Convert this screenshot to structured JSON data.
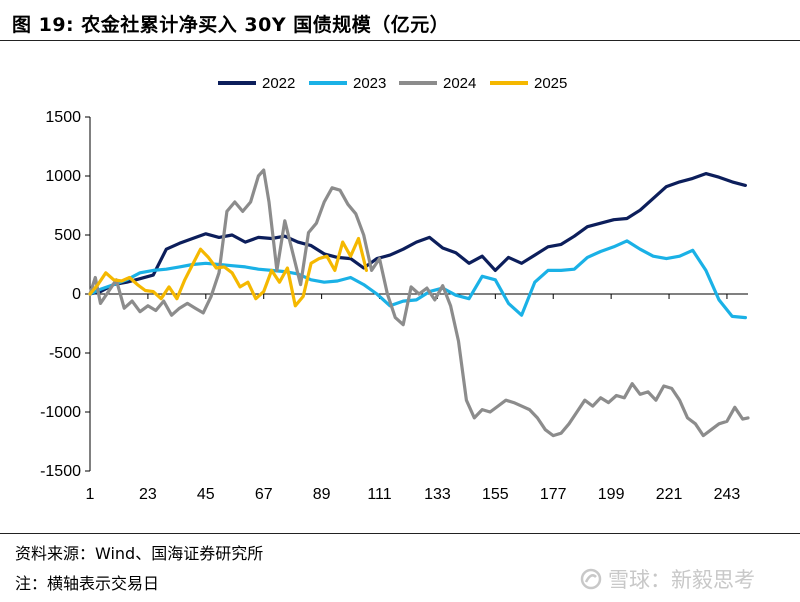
{
  "figure": {
    "title": "图 19:  农金社累计净买入 30Y 国债规模（亿元）",
    "source": "资料来源：Wind、国海证券研究所",
    "note": "注：横轴表示交易日",
    "watermark": "雪球：新毅思考"
  },
  "chart_data": {
    "type": "line",
    "title": "农金社累计净买入 30Y 国债规模（亿元）",
    "xlabel": "交易日",
    "ylabel": "",
    "ylim": [
      -1500,
      1500
    ],
    "yticks": [
      -1500,
      -1000,
      -500,
      0,
      500,
      1000,
      1500
    ],
    "yticklabels": [
      "-1500",
      "-1000",
      "-500",
      "0",
      "500",
      "1000",
      "1500"
    ],
    "xlim": [
      1,
      251
    ],
    "xticks": [
      1,
      23,
      45,
      67,
      89,
      111,
      133,
      155,
      177,
      199,
      221,
      243
    ],
    "xticklabels": [
      "1",
      "23",
      "45",
      "67",
      "89",
      "111",
      "133",
      "155",
      "177",
      "199",
      "221",
      "243"
    ],
    "colors": {
      "2022": "#0c1e5b",
      "2023": "#1ab1e6",
      "2024": "#8c8c8c",
      "2025": "#f5b800"
    },
    "series": [
      {
        "name": "2022",
        "x": [
          1,
          5,
          10,
          15,
          20,
          25,
          30,
          35,
          40,
          45,
          50,
          55,
          60,
          65,
          70,
          75,
          80,
          85,
          90,
          95,
          100,
          105,
          110,
          115,
          120,
          125,
          130,
          135,
          140,
          145,
          150,
          155,
          160,
          165,
          170,
          175,
          180,
          185,
          190,
          195,
          200,
          205,
          210,
          215,
          220,
          225,
          230,
          235,
          240,
          245,
          250
        ],
        "y": [
          0,
          20,
          80,
          100,
          130,
          160,
          380,
          430,
          470,
          510,
          480,
          500,
          440,
          480,
          470,
          490,
          440,
          410,
          340,
          310,
          300,
          220,
          300,
          330,
          380,
          440,
          480,
          390,
          350,
          260,
          320,
          200,
          310,
          260,
          330,
          400,
          420,
          490,
          570,
          600,
          630,
          640,
          710,
          810,
          910,
          950,
          980,
          1020,
          990,
          950,
          920
        ]
      },
      {
        "name": "2023",
        "x": [
          1,
          5,
          10,
          15,
          20,
          25,
          30,
          35,
          40,
          45,
          50,
          55,
          60,
          65,
          70,
          75,
          80,
          85,
          90,
          95,
          100,
          105,
          110,
          115,
          120,
          125,
          130,
          135,
          140,
          145,
          150,
          155,
          160,
          165,
          170,
          175,
          180,
          185,
          190,
          195,
          200,
          205,
          210,
          215,
          220,
          225,
          230,
          235,
          240,
          245,
          250
        ],
        "y": [
          0,
          40,
          80,
          120,
          180,
          200,
          210,
          230,
          250,
          260,
          250,
          240,
          230,
          210,
          200,
          190,
          170,
          120,
          100,
          110,
          140,
          80,
          0,
          -100,
          -60,
          -50,
          20,
          50,
          -10,
          -40,
          150,
          120,
          -80,
          -180,
          100,
          200,
          200,
          210,
          310,
          360,
          400,
          450,
          380,
          320,
          300,
          320,
          370,
          200,
          -50,
          -190,
          -200
        ]
      },
      {
        "name": "2024",
        "x": [
          1,
          3,
          5,
          8,
          11,
          14,
          17,
          20,
          23,
          26,
          29,
          32,
          35,
          38,
          41,
          44,
          47,
          50,
          53,
          56,
          59,
          62,
          65,
          67,
          69,
          72,
          75,
          78,
          81,
          84,
          87,
          90,
          93,
          96,
          99,
          102,
          105,
          108,
          111,
          114,
          117,
          120,
          123,
          126,
          129,
          132,
          135,
          138,
          141,
          144,
          147,
          150,
          153,
          156,
          159,
          162,
          165,
          168,
          171,
          174,
          177,
          180,
          183,
          186,
          189,
          192,
          195,
          198,
          201,
          204,
          207,
          210,
          213,
          216,
          219,
          222,
          225,
          228,
          231,
          234,
          237,
          240,
          243,
          246,
          249,
          251
        ],
        "y": [
          0,
          140,
          -80,
          20,
          120,
          -120,
          -60,
          -150,
          -100,
          -140,
          -60,
          -180,
          -120,
          -80,
          -120,
          -160,
          -20,
          180,
          700,
          780,
          700,
          780,
          1000,
          1050,
          780,
          200,
          620,
          350,
          80,
          520,
          600,
          780,
          900,
          880,
          760,
          680,
          500,
          200,
          300,
          0,
          -200,
          -260,
          60,
          0,
          50,
          -50,
          70,
          -100,
          -400,
          -900,
          -1050,
          -980,
          -1000,
          -950,
          -900,
          -920,
          -950,
          -980,
          -1050,
          -1150,
          -1200,
          -1180,
          -1100,
          -1000,
          -900,
          -950,
          -880,
          -920,
          -860,
          -880,
          -760,
          -850,
          -830,
          -900,
          -780,
          -800,
          -900,
          -1050,
          -1100,
          -1200,
          -1150,
          -1100,
          -1080,
          -960,
          -1060,
          -1050
        ]
      },
      {
        "name": "2025",
        "x": [
          1,
          4,
          7,
          10,
          13,
          16,
          19,
          22,
          25,
          28,
          31,
          34,
          37,
          40,
          43,
          46,
          49,
          52,
          55,
          58,
          61,
          64,
          67,
          70,
          73,
          76,
          79,
          82,
          85,
          88,
          91,
          94,
          97,
          100,
          103,
          106
        ],
        "y": [
          0,
          80,
          180,
          120,
          110,
          140,
          80,
          30,
          20,
          -40,
          60,
          -40,
          120,
          250,
          380,
          310,
          220,
          230,
          180,
          60,
          100,
          -40,
          20,
          200,
          100,
          220,
          -100,
          -20,
          260,
          300,
          320,
          200,
          440,
          320,
          470,
          200
        ]
      }
    ]
  }
}
